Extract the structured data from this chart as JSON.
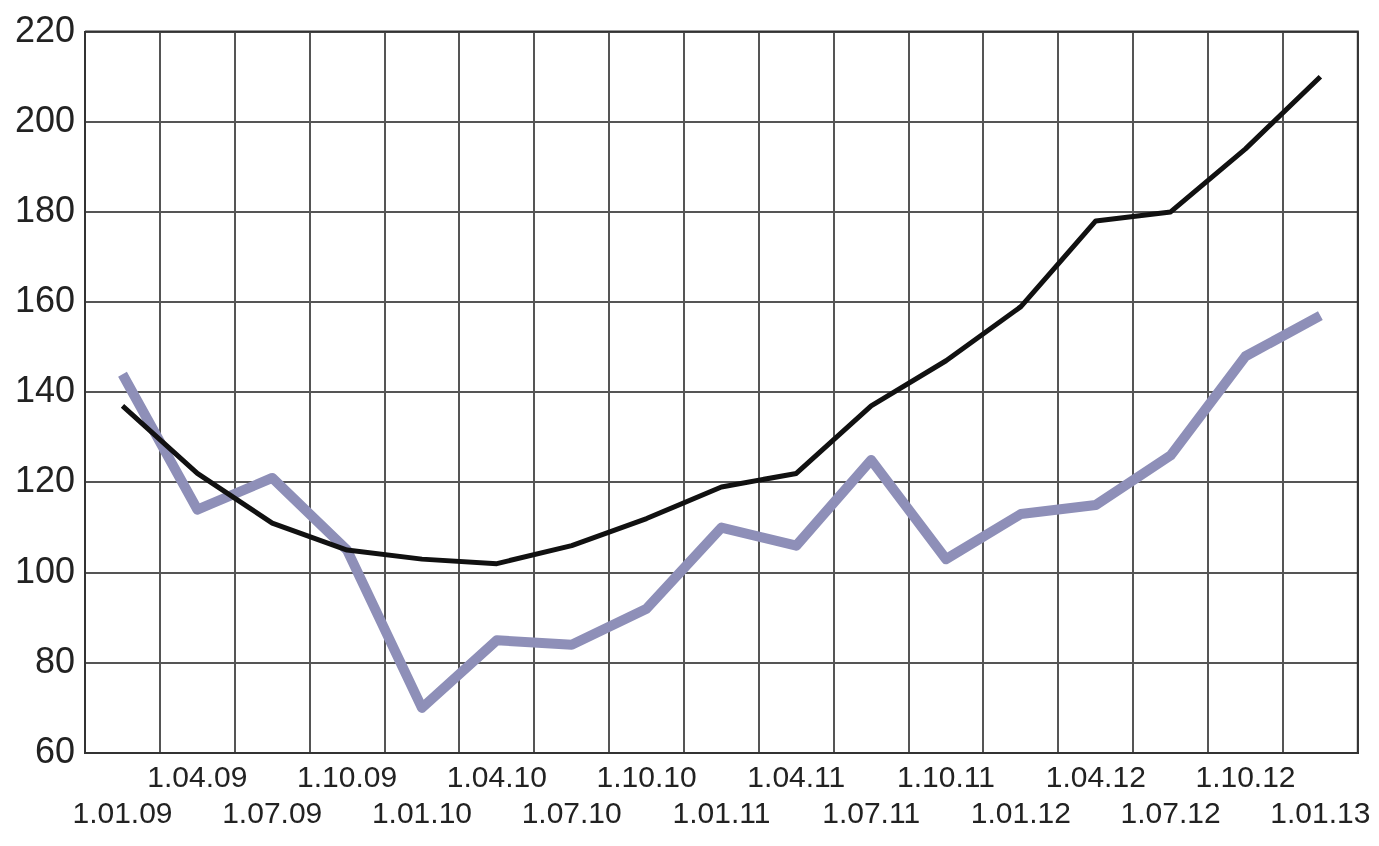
{
  "chart_data": {
    "type": "line",
    "categories": [
      "1.01.09",
      "1.04.09",
      "1.07.09",
      "1.10.09",
      "1.01.10",
      "1.04.10",
      "1.07.10",
      "1.10.10",
      "1.01.11",
      "1.04.11",
      "1.07.11",
      "1.10.11",
      "1.01.12",
      "1.04.12",
      "1.07.12",
      "1.10.12",
      "1.01.13"
    ],
    "series": [
      {
        "color": "#111111",
        "values": [
          137,
          122,
          111,
          105,
          103,
          102,
          106,
          112,
          119,
          122,
          137,
          147,
          159,
          178,
          180,
          194,
          210
        ]
      },
      {
        "color": "#8e8fb8",
        "values": [
          144,
          114,
          121,
          105,
          70,
          85,
          84,
          92,
          110,
          106,
          125,
          103,
          113,
          115,
          126,
          148,
          157
        ]
      }
    ],
    "ylim": [
      60,
      220
    ],
    "yticks": [
      60,
      80,
      100,
      120,
      140,
      160,
      180,
      200,
      220
    ],
    "grid": true,
    "marker": "none"
  }
}
